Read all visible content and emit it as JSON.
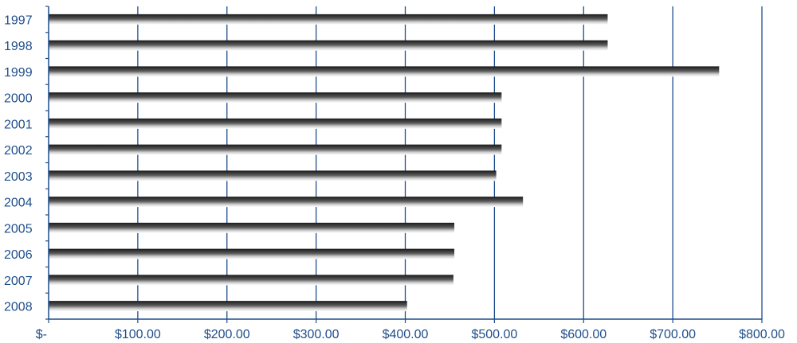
{
  "colors": {
    "axis": "#1f4e8c",
    "text": "#1f4e8c",
    "bar_dark": "#1a1a1a",
    "bar_light": "#ffffff",
    "background": "#ffffff"
  },
  "chart_data": {
    "type": "bar",
    "orientation": "horizontal",
    "categories": [
      "1997",
      "1998",
      "1999",
      "2000",
      "2001",
      "2002",
      "2003",
      "2004",
      "2005",
      "2006",
      "2007",
      "2008"
    ],
    "values": [
      627,
      627,
      752,
      508,
      508,
      508,
      502,
      532,
      455,
      455,
      454,
      402
    ],
    "xlim": [
      0,
      800
    ],
    "x_ticks": [
      0,
      100,
      200,
      300,
      400,
      500,
      600,
      700,
      800
    ],
    "x_tick_labels": [
      "$-",
      "$100.00",
      "$200.00",
      "$300.00",
      "$400.00",
      "$500.00",
      "$600.00",
      "$700.00",
      "$800.00"
    ],
    "grid": "vertical",
    "title": "",
    "xlabel": "",
    "ylabel": ""
  }
}
